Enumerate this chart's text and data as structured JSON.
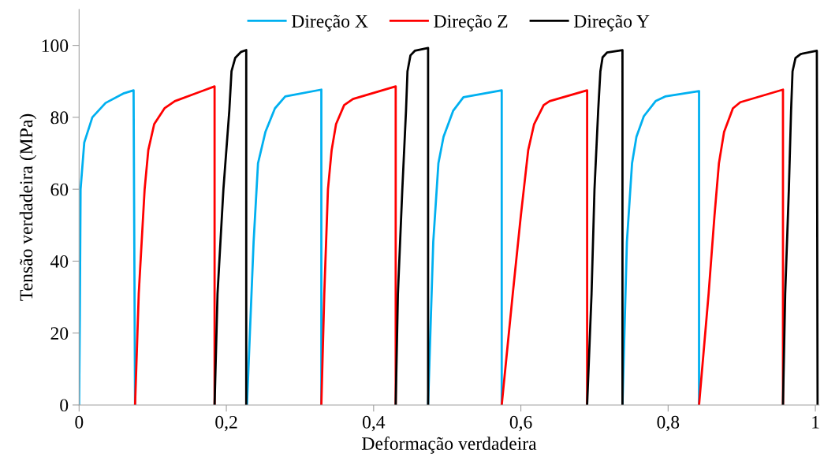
{
  "chart_data": {
    "type": "line",
    "xlabel": "Deformação verdadeira",
    "ylabel": "Tensão verdadeira (MPa)",
    "xlim": [
      0,
      1.005
    ],
    "ylim": [
      0,
      110
    ],
    "xticks": [
      0,
      {
        "value": 0.2,
        "label": "0,2"
      },
      {
        "value": 0.4,
        "label": "0,4"
      },
      {
        "value": 0.6,
        "label": "0,6"
      },
      {
        "value": 0.8,
        "label": "0,8"
      },
      1
    ],
    "yticks": [
      0,
      20,
      40,
      60,
      80,
      100
    ],
    "grid": false,
    "legend": "top",
    "marker": "none",
    "line_style": "solid",
    "series": [
      {
        "name": "Direção X",
        "color": "#00b0f0",
        "x": [
          0,
          0.001,
          0.002,
          0.007,
          0.018,
          0.036,
          0.061,
          0.074,
          0.076,
          null,
          0.228,
          0.237,
          0.243,
          0.253,
          0.266,
          0.28,
          0.329,
          0.329,
          null,
          0.474,
          0.481,
          0.488,
          0.495,
          0.508,
          0.522,
          0.574,
          0.574,
          null,
          0.738,
          0.744,
          0.751,
          0.757,
          0.767,
          0.783,
          0.796,
          0.842,
          0.842
        ],
        "values": [
          0,
          25,
          60,
          73,
          80,
          84,
          86.7,
          87.5,
          0,
          null,
          0,
          45.3,
          67.2,
          75.9,
          82.5,
          85.8,
          87.7,
          0,
          null,
          0,
          45.3,
          67.2,
          74.6,
          81.8,
          85.6,
          87.5,
          0,
          null,
          0,
          45.3,
          67.2,
          74.6,
          80.3,
          84.5,
          85.8,
          87.3,
          0
        ]
      },
      {
        "name": "Direção Z",
        "color": "#ff0000",
        "x": [
          0.076,
          0.081,
          0.089,
          0.094,
          0.102,
          0.116,
          0.13,
          0.184,
          0.184,
          null,
          0.329,
          0.333,
          0.338,
          0.343,
          0.349,
          0.36,
          0.372,
          0.43,
          0.43,
          null,
          0.574,
          0.589,
          0.6,
          0.61,
          0.618,
          0.631,
          0.639,
          0.69,
          0.69,
          null,
          0.842,
          0.855,
          0.863,
          0.869,
          0.876,
          0.888,
          0.898,
          0.956,
          0.956
        ],
        "values": [
          0,
          30.9,
          60,
          70.9,
          78.1,
          82.5,
          84.5,
          88.6,
          0,
          null,
          0,
          30.9,
          60,
          70.9,
          78.1,
          83.4,
          85.1,
          88.6,
          0,
          null,
          0,
          30.9,
          52.7,
          70.9,
          78.1,
          83.4,
          84.5,
          87.5,
          0,
          null,
          0,
          30.9,
          52.7,
          67.2,
          75.9,
          82.5,
          84.2,
          87.7,
          0
        ]
      },
      {
        "name": "Direção Y",
        "color": "#000000",
        "x": [
          0.184,
          0.188,
          0.196,
          0.204,
          0.207,
          0.212,
          0.22,
          0.227,
          0.227,
          null,
          0.43,
          0.433,
          0.439,
          0.444,
          0.446,
          0.45,
          0.456,
          0.474,
          0.474,
          null,
          0.69,
          0.696,
          0.7,
          0.705,
          0.708,
          0.711,
          0.717,
          0.738,
          0.738,
          null,
          0.956,
          0.959,
          0.964,
          0.967,
          0.969,
          0.973,
          0.98,
          1.002,
          1.003
        ],
        "values": [
          0,
          30.9,
          60,
          81.8,
          92.8,
          96.5,
          98.2,
          98.7,
          0,
          null,
          0,
          30.9,
          60,
          81.8,
          92.8,
          97.2,
          98.5,
          99.3,
          0,
          null,
          0,
          30.9,
          60,
          81.8,
          92.8,
          96.7,
          98,
          98.7,
          0,
          null,
          0,
          30.9,
          60,
          81.8,
          92.8,
          96.5,
          97.6,
          98.5,
          0
        ]
      }
    ]
  }
}
